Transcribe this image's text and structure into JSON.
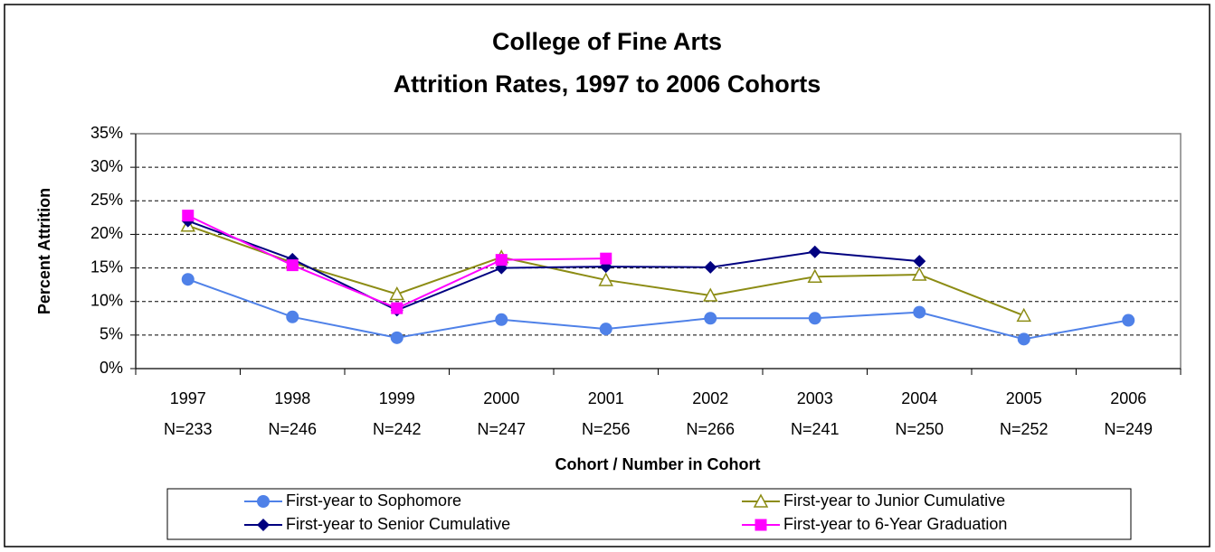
{
  "chart_data": {
    "type": "line",
    "title": [
      "College of Fine Arts",
      "Attrition Rates, 1997 to 2006 Cohorts"
    ],
    "x_label": "Cohort / Number in Cohort",
    "y_label": "Percent Attrition",
    "categories": [
      [
        "1997",
        "N=233"
      ],
      [
        "1998",
        "N=246"
      ],
      [
        "1999",
        "N=242"
      ],
      [
        "2000",
        "N=247"
      ],
      [
        "2001",
        "N=256"
      ],
      [
        "2002",
        "N=266"
      ],
      [
        "2003",
        "N=241"
      ],
      [
        "2004",
        "N=250"
      ],
      [
        "2005",
        "N=252"
      ],
      [
        "2006",
        "N=249"
      ]
    ],
    "series": [
      {
        "name": "First-year to Sophomore",
        "color": "#4f81e8",
        "marker": "circle",
        "values": [
          13.3,
          7.7,
          4.6,
          7.3,
          5.9,
          7.5,
          7.5,
          8.4,
          4.4,
          7.2
        ]
      },
      {
        "name": "First-year to Junior Cumulative",
        "color": "#8c8c14",
        "marker": "triangle",
        "values": [
          21.3,
          15.8,
          11.1,
          16.6,
          13.2,
          10.9,
          13.7,
          14.0,
          7.9,
          null
        ]
      },
      {
        "name": "First-year to Senior Cumulative",
        "color": "#000080",
        "marker": "diamond",
        "values": [
          22.0,
          16.3,
          8.7,
          15.0,
          15.2,
          15.1,
          17.4,
          16.0,
          null,
          null
        ]
      },
      {
        "name": "First-year to 6-Year Graduation",
        "color": "#ff00ff",
        "marker": "square",
        "values": [
          22.8,
          15.4,
          9.0,
          16.2,
          16.4,
          null,
          null,
          null,
          null,
          null
        ]
      }
    ],
    "ylim": [
      0,
      35
    ],
    "yticks": [
      {
        "value": 0,
        "label": "0%"
      },
      {
        "value": 5,
        "label": "5%"
      },
      {
        "value": 10,
        "label": "10%"
      },
      {
        "value": 15,
        "label": "15%"
      },
      {
        "value": 20,
        "label": "20%"
      },
      {
        "value": 25,
        "label": "25%"
      },
      {
        "value": 30,
        "label": "30%"
      },
      {
        "value": 35,
        "label": "35%"
      }
    ],
    "grid": true,
    "legend": "bottom"
  }
}
